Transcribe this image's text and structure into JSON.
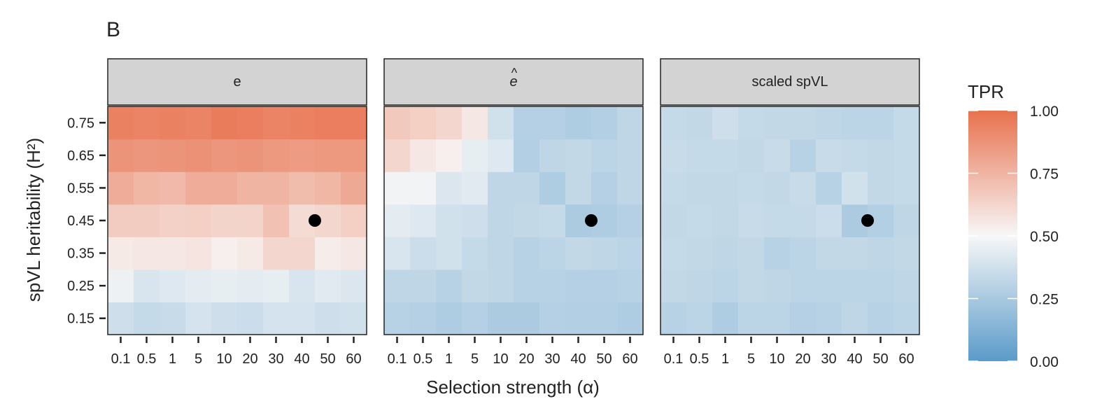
{
  "panel_label": "B",
  "chart_data": {
    "type": "heatmap",
    "xlabel": "Selection strength (α)",
    "ylabel": "spVL heritability (H²)",
    "x_categories": [
      "0.1",
      "0.5",
      "1",
      "5",
      "10",
      "20",
      "30",
      "40",
      "50",
      "60"
    ],
    "y_categories": [
      "0.15",
      "0.25",
      "0.35",
      "0.45",
      "0.55",
      "0.65",
      "0.75"
    ],
    "legend": {
      "title": "TPR",
      "position": "right",
      "ticks": [
        "1.00",
        "0.75",
        "0.50",
        "0.25",
        "0.00"
      ],
      "colors": {
        "low": "#5a9bc9",
        "mid": "#f7f7f7",
        "high": "#e8714d"
      }
    },
    "marker": {
      "x": "40-50",
      "y": "0.45-0.55",
      "color": "#000000"
    },
    "facets": [
      {
        "title": "e",
        "hat": false,
        "values": [
          [
            0.37,
            0.34,
            0.35,
            0.39,
            0.37,
            0.36,
            0.39,
            0.39,
            0.37,
            0.38
          ],
          [
            0.47,
            0.4,
            0.42,
            0.44,
            0.45,
            0.44,
            0.45,
            0.4,
            0.43,
            0.41
          ],
          [
            0.55,
            0.56,
            0.56,
            0.57,
            0.53,
            0.55,
            0.62,
            0.62,
            0.54,
            0.56
          ],
          [
            0.66,
            0.66,
            0.64,
            0.65,
            0.63,
            0.63,
            0.7,
            0.6,
            0.62,
            0.65
          ],
          [
            0.78,
            0.74,
            0.73,
            0.78,
            0.78,
            0.75,
            0.75,
            0.72,
            0.74,
            0.79
          ],
          [
            0.87,
            0.86,
            0.87,
            0.88,
            0.86,
            0.87,
            0.85,
            0.84,
            0.85,
            0.85
          ],
          [
            0.94,
            0.93,
            0.94,
            0.93,
            0.96,
            0.95,
            0.93,
            0.94,
            0.95,
            0.95
          ]
        ]
      },
      {
        "title": "e",
        "hat": true,
        "values": [
          [
            0.3,
            0.29,
            0.27,
            0.29,
            0.26,
            0.26,
            0.29,
            0.28,
            0.28,
            0.27
          ],
          [
            0.32,
            0.32,
            0.3,
            0.33,
            0.32,
            0.3,
            0.3,
            0.29,
            0.29,
            0.3
          ],
          [
            0.4,
            0.36,
            0.38,
            0.34,
            0.32,
            0.3,
            0.31,
            0.33,
            0.32,
            0.31
          ],
          [
            0.44,
            0.42,
            0.38,
            0.37,
            0.32,
            0.33,
            0.34,
            0.26,
            0.27,
            0.29
          ],
          [
            0.48,
            0.48,
            0.41,
            0.43,
            0.32,
            0.32,
            0.27,
            0.33,
            0.29,
            0.32
          ],
          [
            0.62,
            0.56,
            0.53,
            0.45,
            0.42,
            0.28,
            0.32,
            0.33,
            0.31,
            0.32
          ],
          [
            0.67,
            0.65,
            0.62,
            0.56,
            0.38,
            0.29,
            0.29,
            0.27,
            0.28,
            0.32
          ]
        ]
      },
      {
        "title": "scaled spVL",
        "hat": false,
        "values": [
          [
            0.3,
            0.31,
            0.27,
            0.31,
            0.31,
            0.29,
            0.3,
            0.32,
            0.3,
            0.31
          ],
          [
            0.33,
            0.32,
            0.31,
            0.33,
            0.32,
            0.31,
            0.31,
            0.31,
            0.31,
            0.32
          ],
          [
            0.34,
            0.33,
            0.32,
            0.33,
            0.3,
            0.31,
            0.33,
            0.33,
            0.32,
            0.33
          ],
          [
            0.33,
            0.34,
            0.33,
            0.35,
            0.34,
            0.34,
            0.36,
            0.26,
            0.28,
            0.32
          ],
          [
            0.34,
            0.33,
            0.33,
            0.34,
            0.33,
            0.35,
            0.3,
            0.38,
            0.33,
            0.34
          ],
          [
            0.35,
            0.34,
            0.34,
            0.33,
            0.35,
            0.3,
            0.35,
            0.34,
            0.33,
            0.34
          ],
          [
            0.34,
            0.33,
            0.37,
            0.34,
            0.33,
            0.33,
            0.32,
            0.31,
            0.31,
            0.34
          ]
        ]
      }
    ]
  }
}
